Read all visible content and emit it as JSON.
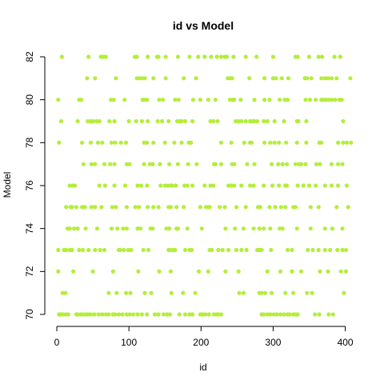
{
  "chart_data": {
    "type": "scatter",
    "title": "id vs Model",
    "xlabel": "id",
    "ylabel": "Model",
    "xlim": [
      0,
      406
    ],
    "ylim": [
      70,
      82
    ],
    "xticks": [
      0,
      100,
      200,
      300,
      400
    ],
    "yticks": [
      70,
      72,
      74,
      76,
      78,
      80,
      82
    ],
    "grid": false,
    "point_color": "#B3EE3A",
    "points": [
      [
        3,
        70
      ],
      [
        5,
        70
      ],
      [
        8,
        70
      ],
      [
        12,
        70
      ],
      [
        16,
        70
      ],
      [
        27,
        70
      ],
      [
        29,
        70
      ],
      [
        33,
        70
      ],
      [
        36,
        70
      ],
      [
        40,
        70
      ],
      [
        43,
        70
      ],
      [
        47,
        70
      ],
      [
        52,
        70
      ],
      [
        58,
        70
      ],
      [
        63,
        70
      ],
      [
        68,
        70
      ],
      [
        72,
        70
      ],
      [
        78,
        70
      ],
      [
        81,
        70
      ],
      [
        86,
        70
      ],
      [
        91,
        70
      ],
      [
        97,
        70
      ],
      [
        101,
        70
      ],
      [
        106,
        70
      ],
      [
        112,
        70
      ],
      [
        118,
        70
      ],
      [
        125,
        70
      ],
      [
        136,
        70
      ],
      [
        141,
        70
      ],
      [
        148,
        70
      ],
      [
        153,
        70
      ],
      [
        157,
        70
      ],
      [
        170,
        70
      ],
      [
        178,
        70
      ],
      [
        184,
        70
      ],
      [
        188,
        70
      ],
      [
        199,
        70
      ],
      [
        202,
        70
      ],
      [
        206,
        70
      ],
      [
        211,
        70
      ],
      [
        218,
        70
      ],
      [
        222,
        70
      ],
      [
        224,
        70
      ],
      [
        228,
        70
      ],
      [
        284,
        70
      ],
      [
        287,
        70
      ],
      [
        292,
        70
      ],
      [
        296,
        70
      ],
      [
        301,
        70
      ],
      [
        305,
        70
      ],
      [
        310,
        70
      ],
      [
        315,
        70
      ],
      [
        320,
        70
      ],
      [
        323,
        70
      ],
      [
        328,
        70
      ],
      [
        331,
        70
      ],
      [
        334,
        70
      ],
      [
        358,
        70
      ],
      [
        364,
        70
      ],
      [
        377,
        70
      ],
      [
        383,
        70
      ],
      [
        8,
        71
      ],
      [
        12,
        71
      ],
      [
        72,
        71
      ],
      [
        83,
        71
      ],
      [
        96,
        71
      ],
      [
        102,
        71
      ],
      [
        122,
        71
      ],
      [
        131,
        71
      ],
      [
        159,
        71
      ],
      [
        175,
        71
      ],
      [
        192,
        71
      ],
      [
        253,
        71
      ],
      [
        259,
        71
      ],
      [
        281,
        71
      ],
      [
        284,
        71
      ],
      [
        289,
        71
      ],
      [
        298,
        71
      ],
      [
        317,
        71
      ],
      [
        328,
        71
      ],
      [
        347,
        71
      ],
      [
        354,
        71
      ],
      [
        398,
        71
      ],
      [
        2,
        72
      ],
      [
        23,
        72
      ],
      [
        50,
        72
      ],
      [
        78,
        72
      ],
      [
        113,
        72
      ],
      [
        142,
        72
      ],
      [
        158,
        72
      ],
      [
        197,
        72
      ],
      [
        210,
        72
      ],
      [
        234,
        72
      ],
      [
        252,
        72
      ],
      [
        292,
        72
      ],
      [
        310,
        72
      ],
      [
        326,
        72
      ],
      [
        339,
        72
      ],
      [
        365,
        72
      ],
      [
        376,
        72
      ],
      [
        394,
        72
      ],
      [
        401,
        72
      ],
      [
        2,
        73
      ],
      [
        10,
        73
      ],
      [
        13,
        73
      ],
      [
        18,
        73
      ],
      [
        21,
        73
      ],
      [
        31,
        73
      ],
      [
        36,
        73
      ],
      [
        44,
        73
      ],
      [
        53,
        73
      ],
      [
        60,
        73
      ],
      [
        66,
        73
      ],
      [
        86,
        73
      ],
      [
        88,
        73
      ],
      [
        93,
        73
      ],
      [
        99,
        73
      ],
      [
        103,
        73
      ],
      [
        120,
        73
      ],
      [
        127,
        73
      ],
      [
        155,
        73
      ],
      [
        157,
        73
      ],
      [
        161,
        73
      ],
      [
        164,
        73
      ],
      [
        178,
        73
      ],
      [
        184,
        73
      ],
      [
        187,
        73
      ],
      [
        212,
        73
      ],
      [
        215,
        73
      ],
      [
        224,
        73
      ],
      [
        230,
        73
      ],
      [
        238,
        73
      ],
      [
        249,
        73
      ],
      [
        256,
        73
      ],
      [
        263,
        73
      ],
      [
        278,
        73
      ],
      [
        281,
        73
      ],
      [
        284,
        73
      ],
      [
        297,
        73
      ],
      [
        320,
        73
      ],
      [
        326,
        73
      ],
      [
        348,
        73
      ],
      [
        355,
        73
      ],
      [
        363,
        73
      ],
      [
        372,
        73
      ],
      [
        379,
        73
      ],
      [
        389,
        73
      ],
      [
        396,
        73
      ],
      [
        401,
        73
      ],
      [
        15,
        74
      ],
      [
        18,
        74
      ],
      [
        24,
        74
      ],
      [
        29,
        74
      ],
      [
        40,
        74
      ],
      [
        56,
        74
      ],
      [
        76,
        74
      ],
      [
        84,
        74
      ],
      [
        92,
        74
      ],
      [
        97,
        74
      ],
      [
        112,
        74
      ],
      [
        116,
        74
      ],
      [
        130,
        74
      ],
      [
        133,
        74
      ],
      [
        152,
        74
      ],
      [
        156,
        74
      ],
      [
        166,
        74
      ],
      [
        168,
        74
      ],
      [
        181,
        74
      ],
      [
        201,
        74
      ],
      [
        234,
        74
      ],
      [
        247,
        74
      ],
      [
        259,
        74
      ],
      [
        273,
        74
      ],
      [
        281,
        74
      ],
      [
        287,
        74
      ],
      [
        296,
        74
      ],
      [
        309,
        74
      ],
      [
        313,
        74
      ],
      [
        333,
        74
      ],
      [
        352,
        74
      ],
      [
        372,
        74
      ],
      [
        382,
        74
      ],
      [
        396,
        74
      ],
      [
        13,
        75
      ],
      [
        19,
        75
      ],
      [
        21,
        75
      ],
      [
        27,
        75
      ],
      [
        35,
        75
      ],
      [
        39,
        75
      ],
      [
        48,
        75
      ],
      [
        53,
        75
      ],
      [
        62,
        75
      ],
      [
        77,
        75
      ],
      [
        82,
        75
      ],
      [
        97,
        75
      ],
      [
        109,
        75
      ],
      [
        114,
        75
      ],
      [
        126,
        75
      ],
      [
        134,
        75
      ],
      [
        141,
        75
      ],
      [
        155,
        75
      ],
      [
        158,
        75
      ],
      [
        166,
        75
      ],
      [
        176,
        75
      ],
      [
        199,
        75
      ],
      [
        207,
        75
      ],
      [
        211,
        75
      ],
      [
        212,
        75
      ],
      [
        226,
        75
      ],
      [
        233,
        75
      ],
      [
        249,
        75
      ],
      [
        262,
        75
      ],
      [
        279,
        75
      ],
      [
        282,
        75
      ],
      [
        295,
        75
      ],
      [
        303,
        75
      ],
      [
        311,
        75
      ],
      [
        317,
        75
      ],
      [
        328,
        75
      ],
      [
        331,
        75
      ],
      [
        352,
        75
      ],
      [
        363,
        75
      ],
      [
        388,
        75
      ],
      [
        404,
        75
      ],
      [
        18,
        76
      ],
      [
        22,
        76
      ],
      [
        25,
        76
      ],
      [
        59,
        76
      ],
      [
        67,
        76
      ],
      [
        80,
        76
      ],
      [
        95,
        76
      ],
      [
        112,
        76
      ],
      [
        117,
        76
      ],
      [
        125,
        76
      ],
      [
        144,
        76
      ],
      [
        150,
        76
      ],
      [
        154,
        76
      ],
      [
        158,
        76
      ],
      [
        160,
        76
      ],
      [
        165,
        76
      ],
      [
        177,
        76
      ],
      [
        181,
        76
      ],
      [
        188,
        76
      ],
      [
        205,
        76
      ],
      [
        213,
        76
      ],
      [
        217,
        76
      ],
      [
        238,
        76
      ],
      [
        242,
        76
      ],
      [
        246,
        76
      ],
      [
        256,
        76
      ],
      [
        268,
        76
      ],
      [
        273,
        76
      ],
      [
        287,
        76
      ],
      [
        299,
        76
      ],
      [
        308,
        76
      ],
      [
        317,
        76
      ],
      [
        319,
        76
      ],
      [
        334,
        76
      ],
      [
        342,
        76
      ],
      [
        350,
        76
      ],
      [
        359,
        76
      ],
      [
        372,
        76
      ],
      [
        381,
        76
      ],
      [
        390,
        76
      ],
      [
        402,
        76
      ],
      [
        37,
        77
      ],
      [
        48,
        77
      ],
      [
        53,
        77
      ],
      [
        66,
        77
      ],
      [
        74,
        77
      ],
      [
        80,
        77
      ],
      [
        97,
        77
      ],
      [
        101,
        77
      ],
      [
        121,
        77
      ],
      [
        129,
        77
      ],
      [
        133,
        77
      ],
      [
        143,
        77
      ],
      [
        156,
        77
      ],
      [
        168,
        77
      ],
      [
        182,
        77
      ],
      [
        194,
        77
      ],
      [
        218,
        77
      ],
      [
        220,
        77
      ],
      [
        228,
        77
      ],
      [
        243,
        77
      ],
      [
        246,
        77
      ],
      [
        264,
        77
      ],
      [
        274,
        77
      ],
      [
        298,
        77
      ],
      [
        307,
        77
      ],
      [
        313,
        77
      ],
      [
        319,
        77
      ],
      [
        331,
        77
      ],
      [
        336,
        77
      ],
      [
        339,
        77
      ],
      [
        345,
        77
      ],
      [
        360,
        77
      ],
      [
        365,
        77
      ],
      [
        381,
        77
      ],
      [
        390,
        77
      ],
      [
        396,
        77
      ],
      [
        3,
        78
      ],
      [
        35,
        78
      ],
      [
        47,
        78
      ],
      [
        57,
        78
      ],
      [
        63,
        78
      ],
      [
        76,
        78
      ],
      [
        81,
        78
      ],
      [
        89,
        78
      ],
      [
        96,
        78
      ],
      [
        121,
        78
      ],
      [
        125,
        78
      ],
      [
        134,
        78
      ],
      [
        150,
        78
      ],
      [
        163,
        78
      ],
      [
        173,
        78
      ],
      [
        183,
        78
      ],
      [
        186,
        78
      ],
      [
        228,
        78
      ],
      [
        242,
        78
      ],
      [
        260,
        78
      ],
      [
        268,
        78
      ],
      [
        270,
        78
      ],
      [
        288,
        78
      ],
      [
        296,
        78
      ],
      [
        302,
        78
      ],
      [
        308,
        78
      ],
      [
        318,
        78
      ],
      [
        333,
        78
      ],
      [
        346,
        78
      ],
      [
        364,
        78
      ],
      [
        367,
        78
      ],
      [
        390,
        78
      ],
      [
        397,
        78
      ],
      [
        402,
        78
      ],
      [
        408,
        78
      ],
      [
        6,
        79
      ],
      [
        29,
        79
      ],
      [
        43,
        79
      ],
      [
        47,
        79
      ],
      [
        50,
        79
      ],
      [
        55,
        79
      ],
      [
        59,
        79
      ],
      [
        73,
        79
      ],
      [
        80,
        79
      ],
      [
        100,
        79
      ],
      [
        110,
        79
      ],
      [
        118,
        79
      ],
      [
        126,
        79
      ],
      [
        140,
        79
      ],
      [
        146,
        79
      ],
      [
        155,
        79
      ],
      [
        167,
        79
      ],
      [
        170,
        79
      ],
      [
        173,
        79
      ],
      [
        178,
        79
      ],
      [
        188,
        79
      ],
      [
        213,
        79
      ],
      [
        217,
        79
      ],
      [
        223,
        79
      ],
      [
        248,
        79
      ],
      [
        252,
        79
      ],
      [
        256,
        79
      ],
      [
        262,
        79
      ],
      [
        268,
        79
      ],
      [
        271,
        79
      ],
      [
        274,
        79
      ],
      [
        278,
        79
      ],
      [
        287,
        79
      ],
      [
        292,
        79
      ],
      [
        302,
        79
      ],
      [
        315,
        79
      ],
      [
        333,
        79
      ],
      [
        335,
        79
      ],
      [
        346,
        79
      ],
      [
        397,
        79
      ],
      [
        2,
        80
      ],
      [
        31,
        80
      ],
      [
        34,
        80
      ],
      [
        75,
        80
      ],
      [
        79,
        80
      ],
      [
        94,
        80
      ],
      [
        119,
        80
      ],
      [
        121,
        80
      ],
      [
        125,
        80
      ],
      [
        142,
        80
      ],
      [
        147,
        80
      ],
      [
        164,
        80
      ],
      [
        169,
        80
      ],
      [
        189,
        80
      ],
      [
        199,
        80
      ],
      [
        210,
        80
      ],
      [
        220,
        80
      ],
      [
        240,
        80
      ],
      [
        244,
        80
      ],
      [
        246,
        80
      ],
      [
        255,
        80
      ],
      [
        274,
        80
      ],
      [
        288,
        80
      ],
      [
        295,
        80
      ],
      [
        309,
        80
      ],
      [
        316,
        80
      ],
      [
        320,
        80
      ],
      [
        345,
        80
      ],
      [
        351,
        80
      ],
      [
        359,
        80
      ],
      [
        367,
        80
      ],
      [
        370,
        80
      ],
      [
        373,
        80
      ],
      [
        377,
        80
      ],
      [
        381,
        80
      ],
      [
        386,
        80
      ],
      [
        392,
        80
      ],
      [
        395,
        80
      ],
      [
        42,
        81
      ],
      [
        53,
        81
      ],
      [
        82,
        81
      ],
      [
        111,
        81
      ],
      [
        114,
        81
      ],
      [
        118,
        81
      ],
      [
        122,
        81
      ],
      [
        134,
        81
      ],
      [
        151,
        81
      ],
      [
        176,
        81
      ],
      [
        193,
        81
      ],
      [
        237,
        81
      ],
      [
        240,
        81
      ],
      [
        243,
        81
      ],
      [
        267,
        81
      ],
      [
        288,
        81
      ],
      [
        300,
        81
      ],
      [
        304,
        81
      ],
      [
        312,
        81
      ],
      [
        321,
        81
      ],
      [
        344,
        81
      ],
      [
        347,
        81
      ],
      [
        353,
        81
      ],
      [
        367,
        81
      ],
      [
        372,
        81
      ],
      [
        376,
        81
      ],
      [
        381,
        81
      ],
      [
        388,
        81
      ],
      [
        407,
        81
      ],
      [
        7,
        82
      ],
      [
        44,
        82
      ],
      [
        61,
        82
      ],
      [
        63,
        82
      ],
      [
        65,
        82
      ],
      [
        68,
        82
      ],
      [
        108,
        82
      ],
      [
        111,
        82
      ],
      [
        126,
        82
      ],
      [
        139,
        82
      ],
      [
        141,
        82
      ],
      [
        151,
        82
      ],
      [
        168,
        82
      ],
      [
        184,
        82
      ],
      [
        196,
        82
      ],
      [
        205,
        82
      ],
      [
        214,
        82
      ],
      [
        222,
        82
      ],
      [
        228,
        82
      ],
      [
        233,
        82
      ],
      [
        236,
        82
      ],
      [
        245,
        82
      ],
      [
        262,
        82
      ],
      [
        277,
        82
      ],
      [
        300,
        82
      ],
      [
        331,
        82
      ],
      [
        334,
        82
      ],
      [
        350,
        82
      ],
      [
        363,
        82
      ],
      [
        368,
        82
      ],
      [
        385,
        82
      ],
      [
        393,
        82
      ]
    ]
  }
}
